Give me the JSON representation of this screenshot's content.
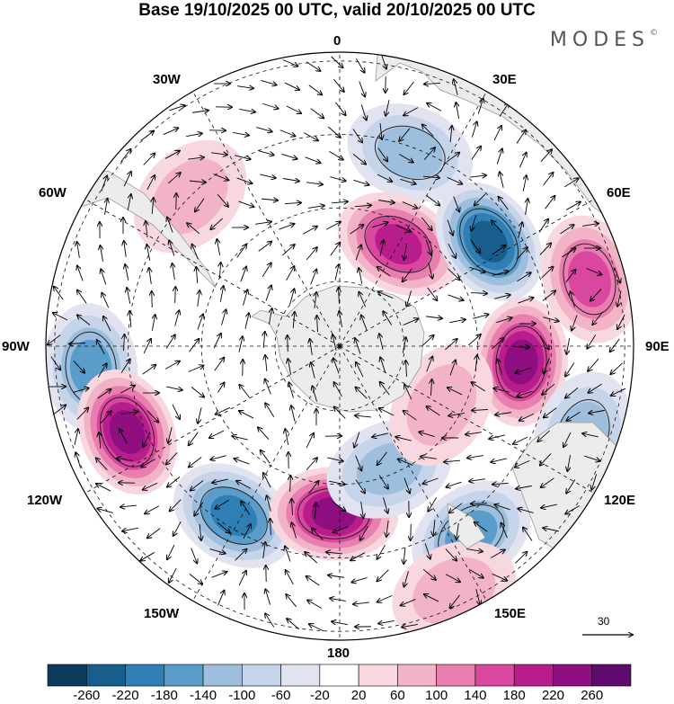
{
  "title": "Base 19/10/2025 00 UTC, valid 20/10/2025 00 UTC",
  "logo": "MODES",
  "logo_mark": "©",
  "longitude_labels": {
    "top": "0",
    "top_left": "30W",
    "top_right": "30E",
    "upper_left": "60W",
    "upper_right": "60E",
    "left": "90W",
    "right": "90E",
    "lower_left": "120W",
    "lower_right": "120E",
    "bottom_left": "150W",
    "bottom_right": "150E",
    "bottom": "180"
  },
  "vector_reference": "30",
  "colorbar": {
    "labels": [
      "-260",
      "-220",
      "-180",
      "-140",
      "-100",
      "-60",
      "-20",
      "20",
      "60",
      "100",
      "140",
      "180",
      "220",
      "260"
    ],
    "colors": [
      "#0d3b5c",
      "#185e8c",
      "#2f7fb4",
      "#5a9dcb",
      "#9dbfdd",
      "#c6d4ea",
      "#e2e3f1",
      "#ffffff",
      "#f8d7de",
      "#f3b3c6",
      "#e87fb0",
      "#d9479e",
      "#b81d8e",
      "#8f0e80",
      "#5e0a6e"
    ]
  },
  "map_colors": {
    "land": "#ececec",
    "land_border": "#9a9a9a",
    "grid": "#111111"
  },
  "anomalies": [
    {
      "lon": 145,
      "r": 0.78,
      "value": -165,
      "kind": "low"
    },
    {
      "lon": 20,
      "r": 0.7,
      "value": -120,
      "kind": "low"
    },
    {
      "lon": 30,
      "r": 0.4,
      "value": 200,
      "kind": "high"
    },
    {
      "lon": 55,
      "r": 0.62,
      "value": -240,
      "kind": "low"
    },
    {
      "lon": 95,
      "r": 0.62,
      "value": 240,
      "kind": "high"
    },
    {
      "lon": 75,
      "r": 0.88,
      "value": 160,
      "kind": "high"
    },
    {
      "lon": 110,
      "r": 0.88,
      "value": -110,
      "kind": "low"
    },
    {
      "lon": -95,
      "r": 0.85,
      "value": -150,
      "kind": "low"
    },
    {
      "lon": -112,
      "r": 0.78,
      "value": 250,
      "kind": "high"
    },
    {
      "lon": -148,
      "r": 0.68,
      "value": -200,
      "kind": "low"
    },
    {
      "lon": -178,
      "r": 0.57,
      "value": 255,
      "kind": "high"
    },
    {
      "lon": 158,
      "r": 0.45,
      "value": -100,
      "kind": "low"
    },
    {
      "lon": 155,
      "r": 0.92,
      "value": 80,
      "kind": "high"
    },
    {
      "lon": -45,
      "r": 0.72,
      "value": 60,
      "kind": "high"
    },
    {
      "lon": 120,
      "r": 0.4,
      "value": 70,
      "kind": "high"
    }
  ]
}
